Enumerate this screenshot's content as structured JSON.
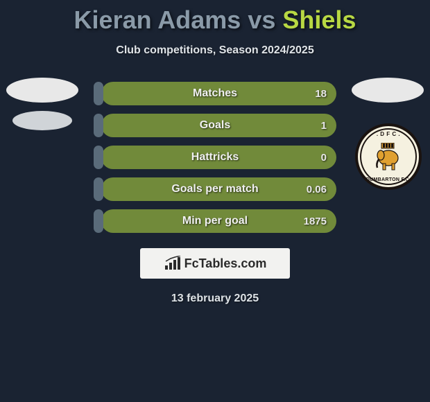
{
  "header": {
    "player1": "Kieran Adams",
    "vs": "vs",
    "player2": "Shiels",
    "subtitle": "Club competitions, Season 2024/2025"
  },
  "colors": {
    "bg": "#1a2332",
    "player1_accent": "#5a6b7a",
    "player2_accent": "#718a3a",
    "title_p1": "#8a9aa8",
    "title_p2": "#b8d843"
  },
  "stats": [
    {
      "label": "Matches",
      "left_val": "",
      "right_val": "18",
      "left_pct": 3,
      "right_pct": 97
    },
    {
      "label": "Goals",
      "left_val": "",
      "right_val": "1",
      "left_pct": 3,
      "right_pct": 97
    },
    {
      "label": "Hattricks",
      "left_val": "",
      "right_val": "0",
      "left_pct": 3,
      "right_pct": 97
    },
    {
      "label": "Goals per match",
      "left_val": "",
      "right_val": "0.06",
      "left_pct": 3,
      "right_pct": 97
    },
    {
      "label": "Min per goal",
      "left_val": "",
      "right_val": "1875",
      "left_pct": 3,
      "right_pct": 97
    }
  ],
  "brand": {
    "text": "FcTables.com"
  },
  "date": "13 february 2025",
  "badge": {
    "top_text": ". D F C .",
    "bottom_text": "DUMBARTON F.C."
  }
}
